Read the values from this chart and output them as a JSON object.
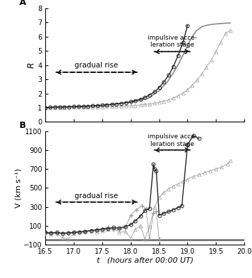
{
  "panel_A": {
    "title": "A",
    "ylabel": "R",
    "xlim": [
      16.5,
      20.0
    ],
    "ylim": [
      0,
      8
    ],
    "yticks": [
      0,
      1,
      2,
      3,
      4,
      5,
      6,
      7,
      8
    ],
    "xticks": [
      16.5,
      17.0,
      17.5,
      18.0,
      18.5,
      19.0,
      19.5,
      20.0
    ],
    "xtick_labels": [
      "16.5",
      "17.0",
      "17.5",
      "18.0",
      "18.5",
      "19.0",
      "19.5",
      "20.0"
    ],
    "gradual_rise_text": "gradual rise",
    "gradual_rise_x1": 16.65,
    "gradual_rise_x2": 18.15,
    "gradual_rise_y": 3.5,
    "impulsive_text": "impulsive acce-\nleration stage",
    "impulsive_x1": 18.38,
    "impulsive_x2": 19.08,
    "impulsive_y": 4.65,
    "circle_t": [
      16.5,
      16.58,
      16.67,
      16.75,
      16.83,
      16.92,
      17.0,
      17.08,
      17.17,
      17.25,
      17.33,
      17.42,
      17.5,
      17.58,
      17.67,
      17.75,
      17.83,
      17.92,
      18.0,
      18.08,
      18.17,
      18.25,
      18.33,
      18.42,
      18.5,
      18.58,
      18.67,
      18.75,
      18.83,
      18.92,
      19.0
    ],
    "circle_R": [
      1.02,
      1.03,
      1.04,
      1.05,
      1.06,
      1.07,
      1.08,
      1.09,
      1.1,
      1.12,
      1.14,
      1.16,
      1.18,
      1.21,
      1.24,
      1.27,
      1.31,
      1.36,
      1.42,
      1.5,
      1.6,
      1.73,
      1.9,
      2.12,
      2.42,
      2.8,
      3.3,
      3.9,
      4.65,
      5.6,
      6.8
    ],
    "triangle_t": [
      16.5,
      16.58,
      16.67,
      16.75,
      16.83,
      16.92,
      17.0,
      17.08,
      17.17,
      17.25,
      17.33,
      17.42,
      17.5,
      17.58,
      17.67,
      17.75,
      17.83,
      17.92,
      18.0,
      18.08,
      18.17,
      18.25,
      18.33,
      18.42,
      18.5,
      18.58,
      18.67,
      18.75,
      18.83,
      18.92,
      19.0,
      19.08,
      19.17,
      19.25,
      19.33,
      19.42,
      19.5,
      19.58,
      19.67,
      19.75
    ],
    "triangle_R": [
      1.01,
      1.01,
      1.02,
      1.02,
      1.02,
      1.03,
      1.03,
      1.04,
      1.04,
      1.05,
      1.05,
      1.06,
      1.07,
      1.08,
      1.09,
      1.1,
      1.11,
      1.13,
      1.15,
      1.17,
      1.2,
      1.23,
      1.27,
      1.32,
      1.38,
      1.46,
      1.56,
      1.68,
      1.84,
      2.03,
      2.27,
      2.58,
      2.95,
      3.38,
      3.86,
      4.4,
      4.98,
      5.6,
      6.25,
      6.45
    ],
    "smooth_t": [
      16.5,
      17.0,
      17.5,
      18.0,
      18.3,
      18.5,
      18.65,
      18.75,
      18.85,
      18.95,
      19.05,
      19.15,
      19.25,
      19.35,
      19.45,
      19.55,
      19.65,
      19.75
    ],
    "smooth_R": [
      1.01,
      1.06,
      1.16,
      1.38,
      1.65,
      2.2,
      2.85,
      3.45,
      4.15,
      4.95,
      5.8,
      6.4,
      6.7,
      6.82,
      6.88,
      6.92,
      6.95,
      6.97
    ],
    "circle_color": "#222222",
    "triangle_color": "#aaaaaa",
    "smooth_color": "#888888"
  },
  "panel_B": {
    "title": "B",
    "ylabel": "V (km s⁻¹)",
    "xlim": [
      16.5,
      20.0
    ],
    "ylim": [
      -100,
      1100
    ],
    "yticks": [
      -100,
      100,
      300,
      500,
      700,
      900,
      1100
    ],
    "xticks": [
      16.5,
      17.0,
      17.5,
      18.0,
      18.5,
      19.0,
      19.5,
      20.0
    ],
    "xtick_labels": [
      "16.5",
      "17.0",
      "17.5",
      "18.0",
      "18.5",
      "19.0",
      "19.5",
      "20.0"
    ],
    "gradual_rise_text": "gradual rise",
    "gradual_rise_x1": 16.65,
    "gradual_rise_x2": 18.15,
    "gradual_rise_y": 350,
    "impulsive_text": "impulsive acce-\nleration stage",
    "impulsive_x1": 18.38,
    "impulsive_x2": 19.08,
    "impulsive_y": 870,
    "hline_y": -50,
    "hline_color": "#666666",
    "circle_t": [
      16.5,
      16.6,
      16.7,
      16.8,
      16.9,
      17.0,
      17.1,
      17.2,
      17.3,
      17.4,
      17.5,
      17.6,
      17.7,
      17.8,
      17.9,
      18.0,
      18.08,
      18.17,
      18.25,
      18.33,
      18.4,
      18.42,
      18.45,
      18.5,
      18.58,
      18.67,
      18.75,
      18.83,
      18.9,
      19.0,
      19.1,
      19.2
    ],
    "circle_V": [
      30,
      25,
      30,
      20,
      25,
      30,
      35,
      40,
      50,
      55,
      65,
      70,
      80,
      75,
      90,
      110,
      150,
      200,
      260,
      280,
      750,
      700,
      680,
      210,
      230,
      250,
      270,
      290,
      310,
      960,
      1050,
      1020
    ],
    "triangle_t": [
      16.5,
      16.6,
      16.7,
      16.8,
      16.9,
      17.0,
      17.1,
      17.2,
      17.3,
      17.4,
      17.5,
      17.6,
      17.7,
      17.8,
      17.9,
      18.0,
      18.08,
      18.17,
      18.25,
      18.33,
      18.42,
      18.5,
      18.58,
      18.67,
      18.75,
      18.83,
      18.92,
      19.0,
      19.1,
      19.2,
      19.3,
      19.4,
      19.5,
      19.6,
      19.7,
      19.75
    ],
    "triangle_V": [
      30,
      10,
      20,
      -30,
      -40,
      20,
      30,
      40,
      50,
      30,
      50,
      60,
      70,
      30,
      40,
      -30,
      60,
      100,
      -40,
      90,
      300,
      400,
      450,
      490,
      520,
      540,
      570,
      590,
      620,
      640,
      660,
      680,
      700,
      720,
      750,
      790
    ],
    "plus_t": [
      16.5,
      16.6,
      16.7,
      16.8,
      16.9,
      17.0,
      17.1,
      17.2,
      17.3,
      17.4,
      17.5,
      17.6,
      17.7,
      17.8,
      17.9,
      18.0,
      18.1,
      18.2,
      18.27,
      18.33,
      18.4,
      18.45,
      18.5
    ],
    "plus_V": [
      20,
      15,
      20,
      15,
      18,
      25,
      30,
      35,
      45,
      55,
      70,
      80,
      65,
      60,
      75,
      210,
      270,
      310,
      280,
      -40,
      230,
      250,
      -40
    ],
    "circle_color": "#222222",
    "triangle_color": "#aaaaaa",
    "plus_color": "#999999"
  },
  "xlabel": "t   (hours after 00:00 UT)",
  "background_color": "#ffffff"
}
